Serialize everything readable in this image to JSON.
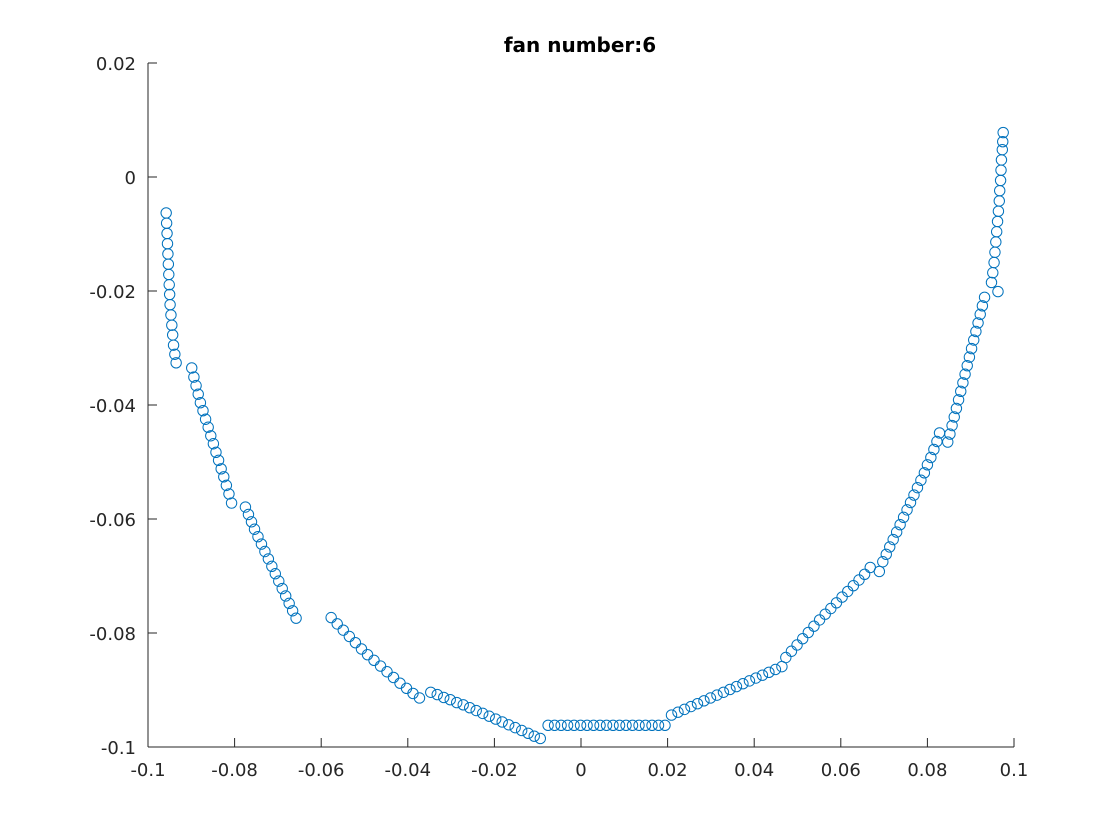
{
  "chart_data": {
    "type": "scatter",
    "title": "fan number:6",
    "xlabel": "",
    "ylabel": "",
    "xlim": [
      -0.1,
      0.1
    ],
    "ylim": [
      -0.1,
      0.02
    ],
    "xticks": [
      -0.1,
      -0.08,
      -0.06,
      -0.04,
      -0.02,
      0,
      0.02,
      0.04,
      0.06,
      0.08,
      0.1
    ],
    "xtick_labels": [
      "-0.1",
      "-0.08",
      "-0.06",
      "-0.04",
      "-0.02",
      "0",
      "0.02",
      "0.04",
      "0.06",
      "0.08",
      "0.1"
    ],
    "yticks": [
      -0.1,
      -0.08,
      -0.06,
      -0.04,
      -0.02,
      0,
      0.02
    ],
    "ytick_labels": [
      "-0.1",
      "-0.08",
      "-0.06",
      "-0.04",
      "-0.02",
      "0",
      "0.02"
    ],
    "grid": false,
    "marker": "circle-open",
    "marker_color": "#0072BD",
    "axis_color": "#262626",
    "series": [
      {
        "points": [
          [
            -0.0958,
            -0.0063
          ],
          [
            -0.0957,
            -0.0081
          ],
          [
            -0.0956,
            -0.0099
          ],
          [
            -0.0955,
            -0.0117
          ],
          [
            -0.0954,
            -0.0135
          ],
          [
            -0.0953,
            -0.0153
          ],
          [
            -0.0952,
            -0.0171
          ],
          [
            -0.0951,
            -0.0189
          ],
          [
            -0.095,
            -0.0206
          ],
          [
            -0.0949,
            -0.0224
          ],
          [
            -0.0947,
            -0.0242
          ],
          [
            -0.0945,
            -0.026
          ],
          [
            -0.0943,
            -0.0277
          ],
          [
            -0.0941,
            -0.0295
          ],
          [
            -0.0938,
            -0.0311
          ],
          [
            -0.0935,
            -0.0326
          ],
          [
            -0.0899,
            -0.0335
          ],
          [
            -0.0894,
            -0.0351
          ],
          [
            -0.0889,
            -0.0366
          ],
          [
            -0.0884,
            -0.0381
          ],
          [
            -0.0879,
            -0.0396
          ],
          [
            -0.0873,
            -0.041
          ],
          [
            -0.0867,
            -0.0425
          ],
          [
            -0.0861,
            -0.0439
          ],
          [
            -0.0855,
            -0.0454
          ],
          [
            -0.0849,
            -0.0468
          ],
          [
            -0.0843,
            -0.0483
          ],
          [
            -0.0837,
            -0.0497
          ],
          [
            -0.0831,
            -0.0512
          ],
          [
            -0.0825,
            -0.0526
          ],
          [
            -0.0819,
            -0.0541
          ],
          [
            -0.0813,
            -0.0556
          ],
          [
            -0.0807,
            -0.0572
          ],
          [
            -0.0775,
            -0.0579
          ],
          [
            -0.0768,
            -0.0592
          ],
          [
            -0.0761,
            -0.0605
          ],
          [
            -0.0754,
            -0.0618
          ],
          [
            -0.0746,
            -0.0631
          ],
          [
            -0.0738,
            -0.0644
          ],
          [
            -0.073,
            -0.0657
          ],
          [
            -0.0722,
            -0.067
          ],
          [
            -0.0714,
            -0.0683
          ],
          [
            -0.0706,
            -0.0696
          ],
          [
            -0.0698,
            -0.0709
          ],
          [
            -0.069,
            -0.0722
          ],
          [
            -0.0682,
            -0.0735
          ],
          [
            -0.0674,
            -0.0748
          ],
          [
            -0.0666,
            -0.0761
          ],
          [
            -0.0658,
            -0.0774
          ],
          [
            -0.0577,
            -0.0773
          ],
          [
            -0.0563,
            -0.0784
          ],
          [
            -0.0549,
            -0.0795
          ],
          [
            -0.0535,
            -0.0806
          ],
          [
            -0.0521,
            -0.0817
          ],
          [
            -0.0507,
            -0.0828
          ],
          [
            -0.0493,
            -0.0838
          ],
          [
            -0.0478,
            -0.0848
          ],
          [
            -0.0463,
            -0.0858
          ],
          [
            -0.0448,
            -0.0868
          ],
          [
            -0.0433,
            -0.0878
          ],
          [
            -0.0418,
            -0.0888
          ],
          [
            -0.0403,
            -0.0897
          ],
          [
            -0.0388,
            -0.0906
          ],
          [
            -0.0373,
            -0.0914
          ],
          [
            -0.0347,
            -0.0904
          ],
          [
            -0.0332,
            -0.0908
          ],
          [
            -0.0317,
            -0.0913
          ],
          [
            -0.0302,
            -0.0917
          ],
          [
            -0.0287,
            -0.0922
          ],
          [
            -0.0272,
            -0.0926
          ],
          [
            -0.0257,
            -0.0931
          ],
          [
            -0.0242,
            -0.0936
          ],
          [
            -0.0227,
            -0.0941
          ],
          [
            -0.0212,
            -0.0946
          ],
          [
            -0.0197,
            -0.0951
          ],
          [
            -0.0182,
            -0.0956
          ],
          [
            -0.0167,
            -0.0961
          ],
          [
            -0.0152,
            -0.0966
          ],
          [
            -0.0137,
            -0.0971
          ],
          [
            -0.0122,
            -0.0976
          ],
          [
            -0.0108,
            -0.0981
          ],
          [
            -0.0094,
            -0.0985
          ],
          [
            -0.0076,
            -0.0962
          ],
          [
            -0.0061,
            -0.0962
          ],
          [
            -0.0046,
            -0.0962
          ],
          [
            -0.0031,
            -0.0962
          ],
          [
            -0.0016,
            -0.0962
          ],
          [
            -0.0001,
            -0.0962
          ],
          [
            0.0014,
            -0.0962
          ],
          [
            0.0029,
            -0.0962
          ],
          [
            0.0044,
            -0.0962
          ],
          [
            0.0059,
            -0.0962
          ],
          [
            0.0074,
            -0.0962
          ],
          [
            0.0089,
            -0.0962
          ],
          [
            0.0104,
            -0.0962
          ],
          [
            0.0119,
            -0.0962
          ],
          [
            0.0134,
            -0.0962
          ],
          [
            0.0149,
            -0.0962
          ],
          [
            0.0164,
            -0.0962
          ],
          [
            0.0179,
            -0.0962
          ],
          [
            0.0194,
            -0.0962
          ],
          [
            0.0209,
            -0.0944
          ],
          [
            0.0224,
            -0.0939
          ],
          [
            0.0239,
            -0.0934
          ],
          [
            0.0254,
            -0.0929
          ],
          [
            0.0269,
            -0.0924
          ],
          [
            0.0284,
            -0.0919
          ],
          [
            0.0299,
            -0.0914
          ],
          [
            0.0314,
            -0.0909
          ],
          [
            0.0329,
            -0.0904
          ],
          [
            0.0344,
            -0.0899
          ],
          [
            0.0359,
            -0.0894
          ],
          [
            0.0374,
            -0.0889
          ],
          [
            0.0389,
            -0.0884
          ],
          [
            0.0404,
            -0.0879
          ],
          [
            0.0419,
            -0.0874
          ],
          [
            0.0434,
            -0.0869
          ],
          [
            0.0449,
            -0.0864
          ],
          [
            0.0464,
            -0.0859
          ],
          [
            0.0473,
            -0.0843
          ],
          [
            0.0486,
            -0.0832
          ],
          [
            0.0499,
            -0.0821
          ],
          [
            0.0512,
            -0.081
          ],
          [
            0.0525,
            -0.0799
          ],
          [
            0.0538,
            -0.0788
          ],
          [
            0.0551,
            -0.0777
          ],
          [
            0.0564,
            -0.0767
          ],
          [
            0.0577,
            -0.0757
          ],
          [
            0.059,
            -0.0747
          ],
          [
            0.0603,
            -0.0737
          ],
          [
            0.0616,
            -0.0727
          ],
          [
            0.0629,
            -0.0717
          ],
          [
            0.0642,
            -0.0707
          ],
          [
            0.0655,
            -0.0697
          ],
          [
            0.0668,
            -0.0685
          ],
          [
            0.0689,
            -0.0692
          ],
          [
            0.0697,
            -0.0675
          ],
          [
            0.0705,
            -0.0662
          ],
          [
            0.0713,
            -0.0649
          ],
          [
            0.0721,
            -0.0636
          ],
          [
            0.0729,
            -0.0623
          ],
          [
            0.0737,
            -0.061
          ],
          [
            0.0745,
            -0.0597
          ],
          [
            0.0753,
            -0.0584
          ],
          [
            0.0761,
            -0.0571
          ],
          [
            0.0769,
            -0.0558
          ],
          [
            0.0777,
            -0.0545
          ],
          [
            0.0785,
            -0.0532
          ],
          [
            0.0793,
            -0.0519
          ],
          [
            0.08,
            -0.0505
          ],
          [
            0.0808,
            -0.0492
          ],
          [
            0.0815,
            -0.0478
          ],
          [
            0.0822,
            -0.0464
          ],
          [
            0.0828,
            -0.0449
          ],
          [
            0.0847,
            -0.0465
          ],
          [
            0.0852,
            -0.0451
          ],
          [
            0.0857,
            -0.0436
          ],
          [
            0.0862,
            -0.0421
          ],
          [
            0.0867,
            -0.0406
          ],
          [
            0.0872,
            -0.0391
          ],
          [
            0.0877,
            -0.0376
          ],
          [
            0.0882,
            -0.0361
          ],
          [
            0.0887,
            -0.0346
          ],
          [
            0.0892,
            -0.0331
          ],
          [
            0.0897,
            -0.0316
          ],
          [
            0.0902,
            -0.0301
          ],
          [
            0.0907,
            -0.0286
          ],
          [
            0.0912,
            -0.0271
          ],
          [
            0.0917,
            -0.0256
          ],
          [
            0.0922,
            -0.0241
          ],
          [
            0.0927,
            -0.0226
          ],
          [
            0.0932,
            -0.0211
          ],
          [
            0.0963,
            -0.0201
          ],
          [
            0.0948,
            -0.0185
          ],
          [
            0.0951,
            -0.0168
          ],
          [
            0.0954,
            -0.015
          ],
          [
            0.0956,
            -0.0132
          ],
          [
            0.0958,
            -0.0114
          ],
          [
            0.096,
            -0.0096
          ],
          [
            0.0962,
            -0.0078
          ],
          [
            0.0964,
            -0.006
          ],
          [
            0.0966,
            -0.0042
          ],
          [
            0.0967,
            -0.0024
          ],
          [
            0.0969,
            -0.0006
          ],
          [
            0.097,
            0.0012
          ],
          [
            0.0971,
            0.003
          ],
          [
            0.0973,
            0.0048
          ],
          [
            0.0974,
            0.0062
          ],
          [
            0.0975,
            0.0078
          ]
        ]
      }
    ]
  }
}
